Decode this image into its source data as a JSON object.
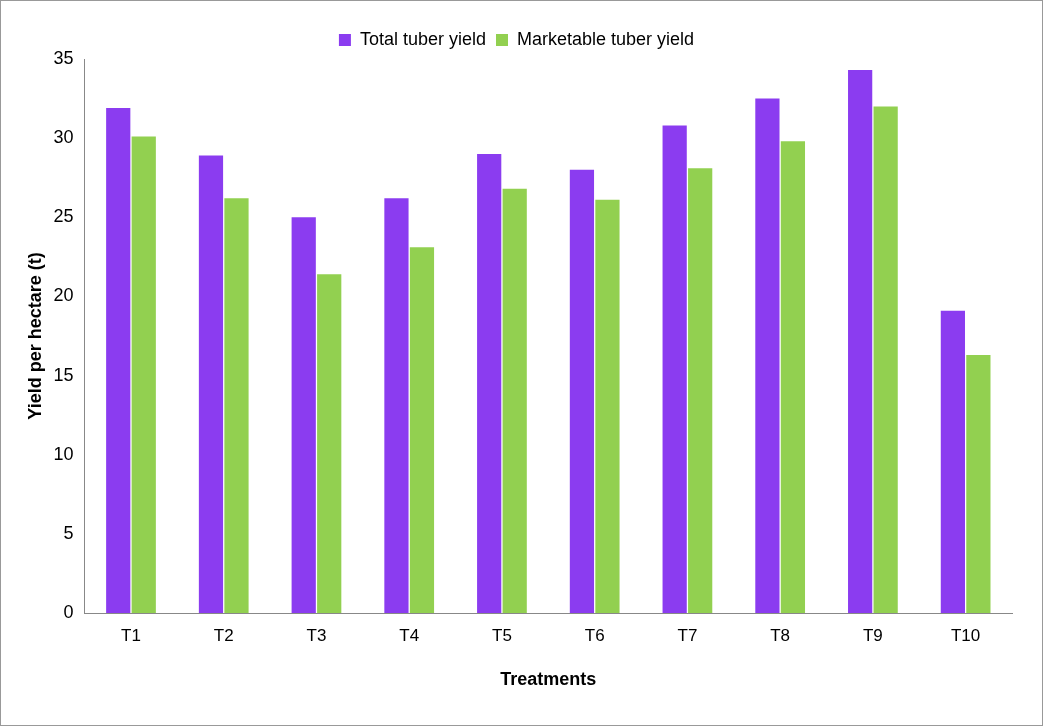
{
  "chart_data": {
    "type": "bar",
    "xlabel": "Treatments",
    "ylabel": "Yield per hectare (t)",
    "categories": [
      "T1",
      "T2",
      "T3",
      "T4",
      "T5",
      "T6",
      "T7",
      "T8",
      "T9",
      "T10"
    ],
    "series": [
      {
        "name": "Total tuber yield",
        "color": "#8b3cf0",
        "values": [
          31.9,
          28.9,
          25.0,
          26.2,
          29.0,
          28.0,
          30.8,
          32.5,
          34.3,
          19.1
        ]
      },
      {
        "name": "Marketable tuber yield",
        "color": "#92d050",
        "values": [
          30.1,
          26.2,
          21.4,
          23.1,
          26.8,
          26.1,
          28.1,
          29.8,
          32.0,
          16.3
        ]
      }
    ],
    "ylim": [
      0,
      35
    ],
    "yticks": [
      0,
      5,
      10,
      15,
      20,
      25,
      30,
      35
    ],
    "grid": false,
    "legend": "top"
  }
}
